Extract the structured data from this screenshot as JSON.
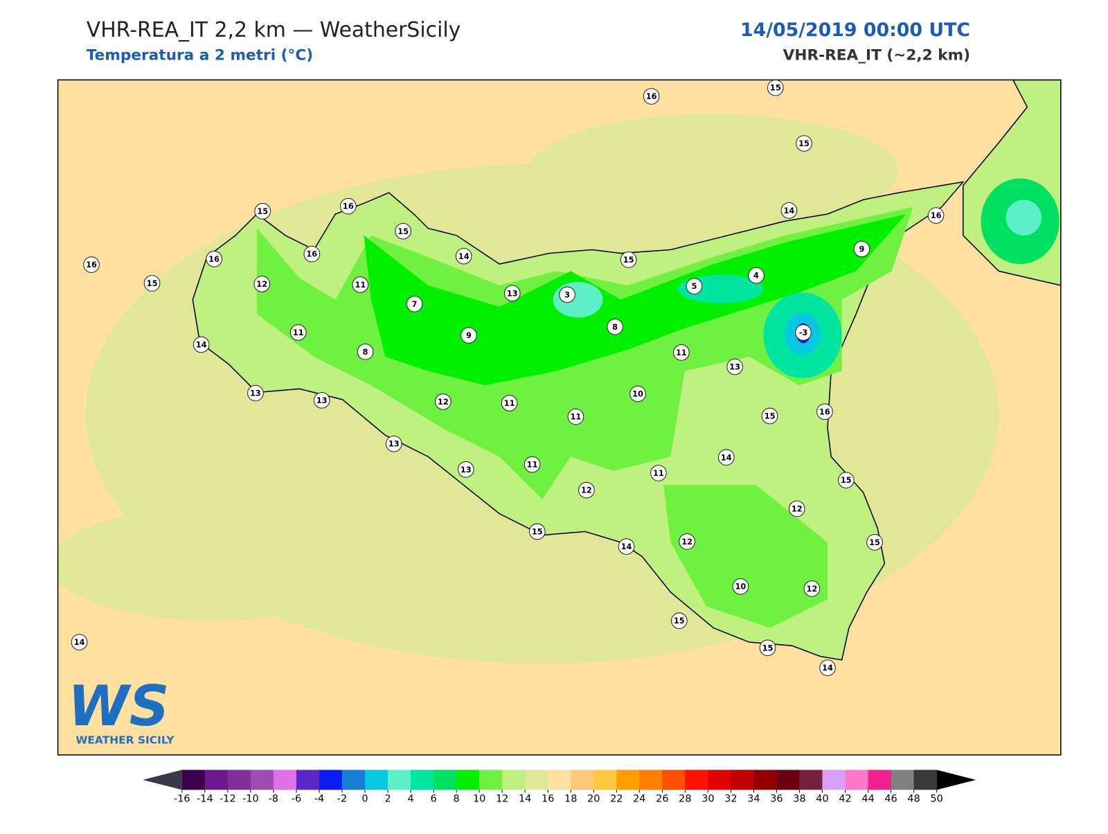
{
  "header": {
    "title": "VHR-REA_IT 2,2 km — WeatherSicily",
    "subtitle": "Temperatura a 2 metri (°C)",
    "datetime": "14/05/2019 00:00 UTC",
    "model": "VHR-REA_IT (~2,2 km)"
  },
  "stations": [
    16,
    15,
    15,
    15,
    16,
    15,
    14,
    16,
    16,
    16,
    16,
    14,
    15,
    9,
    15,
    12,
    11,
    13,
    3,
    4,
    5,
    7,
    11,
    9,
    8,
    -3,
    14,
    8,
    11,
    13,
    13,
    13,
    12,
    11,
    10,
    11,
    15,
    16,
    13,
    14,
    13,
    11,
    11,
    12,
    15,
    12,
    15,
    14,
    12,
    15,
    10,
    12,
    15,
    14,
    15,
    14
  ],
  "colorbar": {
    "ticks": [
      -16,
      -14,
      -12,
      -10,
      -8,
      -6,
      -4,
      -2,
      0,
      2,
      4,
      6,
      8,
      10,
      12,
      14,
      16,
      18,
      20,
      22,
      24,
      26,
      28,
      30,
      32,
      34,
      36,
      38,
      40,
      42,
      44,
      46,
      48,
      50
    ],
    "colors": [
      "#3d004d",
      "#6a1a8a",
      "#7e3197",
      "#9b4db0",
      "#e070e8",
      "#5a28c8",
      "#0a1ef0",
      "#1a7ed8",
      "#0ac8e0",
      "#5ef0c8",
      "#00e6a0",
      "#00e060",
      "#00f000",
      "#70f040",
      "#c0f080",
      "#e0e898",
      "#ffe0a0",
      "#ffc878",
      "#ffc840",
      "#ffa000",
      "#ff8000",
      "#ff5000",
      "#ff1000",
      "#e00000",
      "#c00000",
      "#900000",
      "#680010",
      "#782040",
      "#d8a0f8",
      "#ff78c8",
      "#f02090",
      "#808080",
      "#383838"
    ],
    "under_color": "#383848",
    "over_color": "#000000"
  },
  "logo": {
    "mark": "WS",
    "text": "WEATHER SICILY"
  }
}
